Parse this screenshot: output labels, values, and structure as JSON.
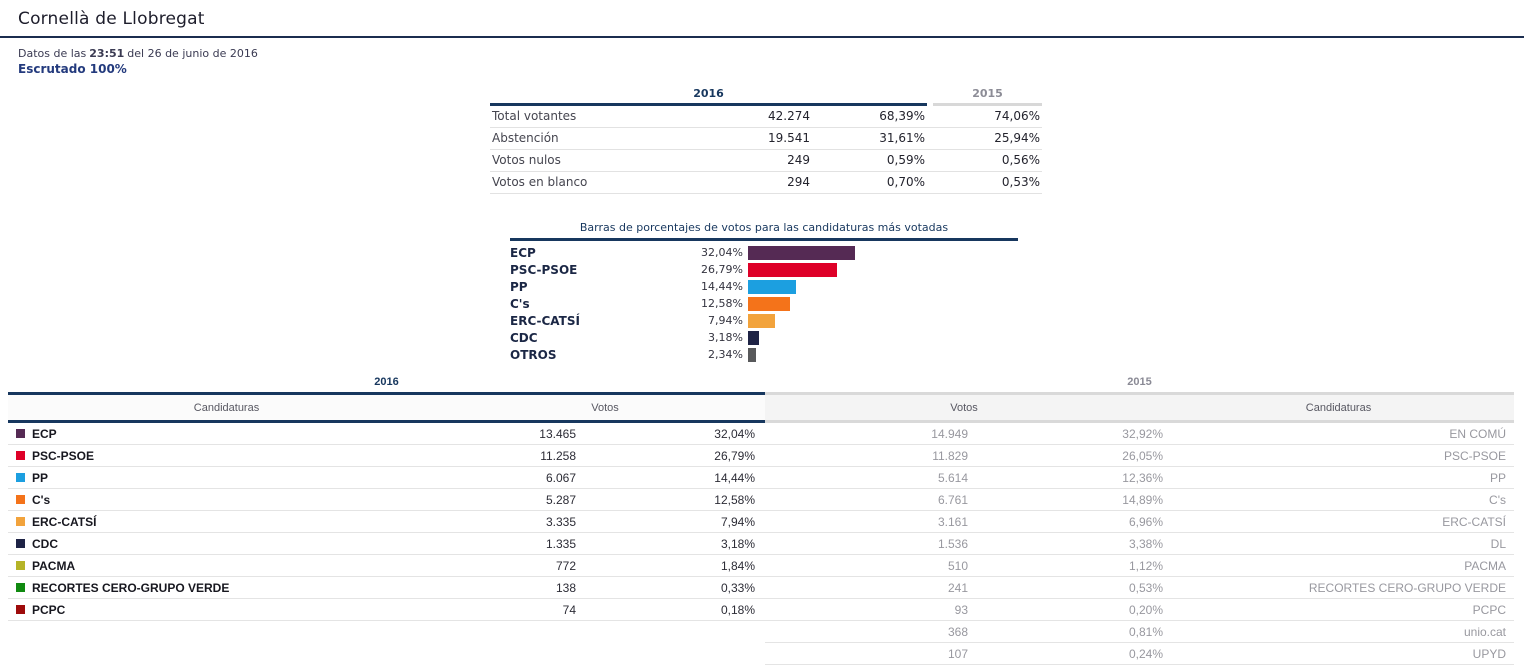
{
  "header": {
    "title": "Cornellà de Llobregat",
    "datetime_prefix": "Datos de las",
    "time": "23:51",
    "datetime_suffix": "del 26 de junio de 2016",
    "scrutiny": "Escrutado 100%"
  },
  "summary": {
    "col_2016": "2016",
    "col_2015": "2015",
    "rows": [
      {
        "label": "Total votantes",
        "votes": "42.274",
        "pct2016": "68,39%",
        "pct2015": "74,06%"
      },
      {
        "label": "Abstención",
        "votes": "19.541",
        "pct2016": "31,61%",
        "pct2015": "25,94%"
      },
      {
        "label": "Votos nulos",
        "votes": "249",
        "pct2016": "0,59%",
        "pct2015": "0,56%"
      },
      {
        "label": "Votos en blanco",
        "votes": "294",
        "pct2016": "0,70%",
        "pct2015": "0,53%"
      }
    ]
  },
  "chart_data": {
    "type": "bar",
    "orientation": "horizontal",
    "title": "Barras de porcentajes de votos para las candidaturas más votadas",
    "categories": [
      "ECP",
      "PSC-PSOE",
      "PP",
      "C's",
      "ERC-CATSÍ",
      "CDC",
      "OTROS"
    ],
    "values": [
      32.04,
      26.79,
      14.44,
      12.58,
      7.94,
      3.18,
      2.34
    ],
    "value_labels": [
      "32,04%",
      "26,79%",
      "14,44%",
      "12,58%",
      "7,94%",
      "3,18%",
      "2,34%"
    ],
    "colors": [
      "#552a54",
      "#de0028",
      "#1c9fe0",
      "#f4731a",
      "#f2a33c",
      "#1e2345",
      "#58595b"
    ],
    "xlabel": "",
    "ylabel": "",
    "xlim": [
      0,
      100
    ],
    "grid": false,
    "legend": false
  },
  "results_table": {
    "year_left": "2016",
    "year_right": "2015",
    "col_candidaturas": "Candidaturas",
    "col_votos": "Votos",
    "rows": [
      {
        "party2016": "ECP",
        "color": "#552a54",
        "votes2016": "13.465",
        "pct2016": "32,04%",
        "votes2015": "14.949",
        "pct2015": "32,92%",
        "party2015": "EN COMÚ"
      },
      {
        "party2016": "PSC-PSOE",
        "color": "#de0028",
        "votes2016": "11.258",
        "pct2016": "26,79%",
        "votes2015": "11.829",
        "pct2015": "26,05%",
        "party2015": "PSC-PSOE"
      },
      {
        "party2016": "PP",
        "color": "#1c9fe0",
        "votes2016": "6.067",
        "pct2016": "14,44%",
        "votes2015": "5.614",
        "pct2015": "12,36%",
        "party2015": "PP"
      },
      {
        "party2016": "C's",
        "color": "#f4731a",
        "votes2016": "5.287",
        "pct2016": "12,58%",
        "votes2015": "6.761",
        "pct2015": "14,89%",
        "party2015": "C's"
      },
      {
        "party2016": "ERC-CATSÍ",
        "color": "#f2a33c",
        "votes2016": "3.335",
        "pct2016": "7,94%",
        "votes2015": "3.161",
        "pct2015": "6,96%",
        "party2015": "ERC-CATSÍ"
      },
      {
        "party2016": "CDC",
        "color": "#1e2345",
        "votes2016": "1.335",
        "pct2016": "3,18%",
        "votes2015": "1.536",
        "pct2015": "3,38%",
        "party2015": "DL"
      },
      {
        "party2016": "PACMA",
        "color": "#b5b428",
        "votes2016": "772",
        "pct2016": "1,84%",
        "votes2015": "510",
        "pct2015": "1,12%",
        "party2015": "PACMA"
      },
      {
        "party2016": "RECORTES CERO-GRUPO VERDE",
        "color": "#108a10",
        "votes2016": "138",
        "pct2016": "0,33%",
        "votes2015": "241",
        "pct2015": "0,53%",
        "party2015": "RECORTES CERO-GRUPO VERDE"
      },
      {
        "party2016": "PCPC",
        "color": "#9e0b0b",
        "votes2016": "74",
        "pct2016": "0,18%",
        "votes2015": "93",
        "pct2015": "0,20%",
        "party2015": "PCPC"
      },
      {
        "party2016": "",
        "color": "",
        "votes2016": "",
        "pct2016": "",
        "votes2015": "368",
        "pct2015": "0,81%",
        "party2015": "unio.cat"
      },
      {
        "party2016": "",
        "color": "",
        "votes2016": "",
        "pct2016": "",
        "votes2015": "107",
        "pct2015": "0,24%",
        "party2015": "UPYD"
      }
    ]
  },
  "colors": {
    "accent_navy": "#17375e",
    "muted_gray": "#8c8c96",
    "row_border": "#e4e4e4"
  }
}
